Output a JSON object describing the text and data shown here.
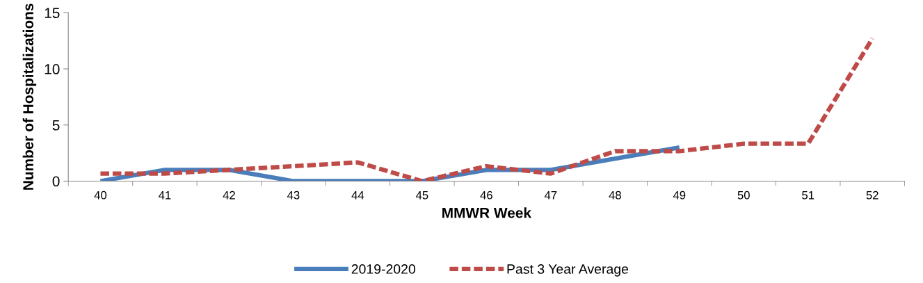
{
  "chart_data": {
    "type": "line",
    "xlabel": "MMWR Week",
    "ylabel": "Number of Hospitalizations",
    "categories": [
      "40",
      "41",
      "42",
      "43",
      "44",
      "45",
      "46",
      "47",
      "48",
      "49",
      "50",
      "51",
      "52"
    ],
    "series": [
      {
        "name": "2019-2020",
        "color": "#4a7ebb",
        "line_style": "solid",
        "values": [
          0,
          1,
          1,
          0,
          0,
          0,
          1,
          1,
          2,
          3,
          null,
          null,
          null
        ]
      },
      {
        "name": "Past 3 Year Average",
        "color": "#be4b48",
        "line_style": "dashed",
        "values": [
          0.67,
          0.67,
          1,
          1.33,
          1.67,
          0,
          1.33,
          0.67,
          2.67,
          2.67,
          3.33,
          3.33,
          12.7
        ]
      }
    ],
    "ylim": [
      0,
      15
    ],
    "yticks": [
      0,
      5,
      10,
      15
    ],
    "grid": false,
    "legend": "bottom",
    "marker": "none"
  }
}
